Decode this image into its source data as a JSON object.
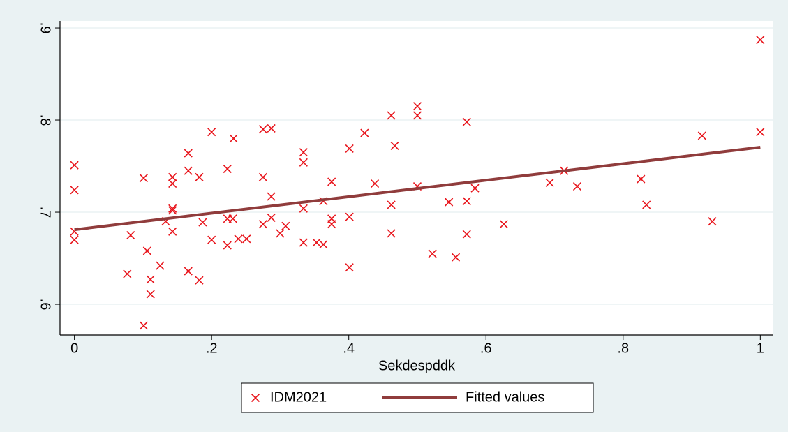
{
  "chart_data": {
    "type": "scatter",
    "x_label": "Sekdespddk",
    "xlim": [
      -0.021,
      1.019
    ],
    "ylim": [
      0.5667,
      0.9076
    ],
    "xticks": [
      0,
      {
        "value": 0.2,
        "label": ".2"
      },
      {
        "value": 0.4,
        "label": ".4"
      },
      {
        "value": 0.6,
        "label": ".6"
      },
      {
        "value": 0.8,
        "label": ".8"
      },
      1
    ],
    "yticks": [
      {
        "value": 0.6,
        "label": ".6"
      },
      {
        "value": 0.7,
        "label": ".7"
      },
      {
        "value": 0.8,
        "label": ".8"
      },
      {
        "value": 0.9,
        "label": ".9"
      }
    ],
    "grid": true,
    "legend": "bottom",
    "series": [
      {
        "name": "IDM2021",
        "color": "#e8141b",
        "kind": "scatter",
        "x": [
          0,
          0,
          0,
          0,
          0.082,
          0.077,
          0.101,
          0.106,
          0.111,
          0.111,
          0.101,
          0.125,
          0.133,
          0.143,
          0.143,
          0.143,
          0.143,
          0.143,
          0.166,
          0.166,
          0.166,
          0.182,
          0.187,
          0.182,
          0.2,
          0.2,
          0.223,
          0.223,
          0.231,
          0.223,
          0.232,
          0.239,
          0.251,
          0.275,
          0.287,
          0.275,
          0.275,
          0.287,
          0.287,
          0.3,
          0.308,
          0.334,
          0.334,
          0.334,
          0.334,
          0.353,
          0.363,
          0.363,
          0.375,
          0.375,
          0.375,
          0.401,
          0.401,
          0.401,
          0.423,
          0.438,
          0.462,
          0.462,
          0.462,
          0.467,
          0.5,
          0.5,
          0.5,
          0.522,
          0.546,
          0.556,
          0.572,
          0.572,
          0.572,
          0.584,
          0.626,
          0.693,
          0.714,
          0.733,
          0.826,
          0.834,
          0.915,
          0.93,
          1,
          1
        ],
        "values": [
          0.751,
          0.724,
          0.679,
          0.67,
          0.675,
          0.633,
          0.737,
          0.658,
          0.627,
          0.611,
          0.577,
          0.642,
          0.69,
          0.738,
          0.731,
          0.704,
          0.702,
          0.679,
          0.764,
          0.745,
          0.636,
          0.738,
          0.689,
          0.626,
          0.787,
          0.67,
          0.747,
          0.693,
          0.693,
          0.664,
          0.78,
          0.671,
          0.671,
          0.79,
          0.791,
          0.738,
          0.687,
          0.717,
          0.694,
          0.677,
          0.685,
          0.765,
          0.754,
          0.704,
          0.667,
          0.667,
          0.712,
          0.665,
          0.733,
          0.693,
          0.687,
          0.769,
          0.695,
          0.64,
          0.786,
          0.731,
          0.805,
          0.708,
          0.677,
          0.772,
          0.815,
          0.805,
          0.728,
          0.655,
          0.711,
          0.651,
          0.798,
          0.712,
          0.676,
          0.726,
          0.687,
          0.732,
          0.745,
          0.728,
          0.736,
          0.708,
          0.783,
          0.69,
          0.887,
          0.787
        ]
      },
      {
        "name": "Fitted values",
        "color": "#903c3c",
        "kind": "line",
        "x": [
          0,
          1
        ],
        "values": [
          0.681,
          0.7705
        ]
      }
    ]
  }
}
